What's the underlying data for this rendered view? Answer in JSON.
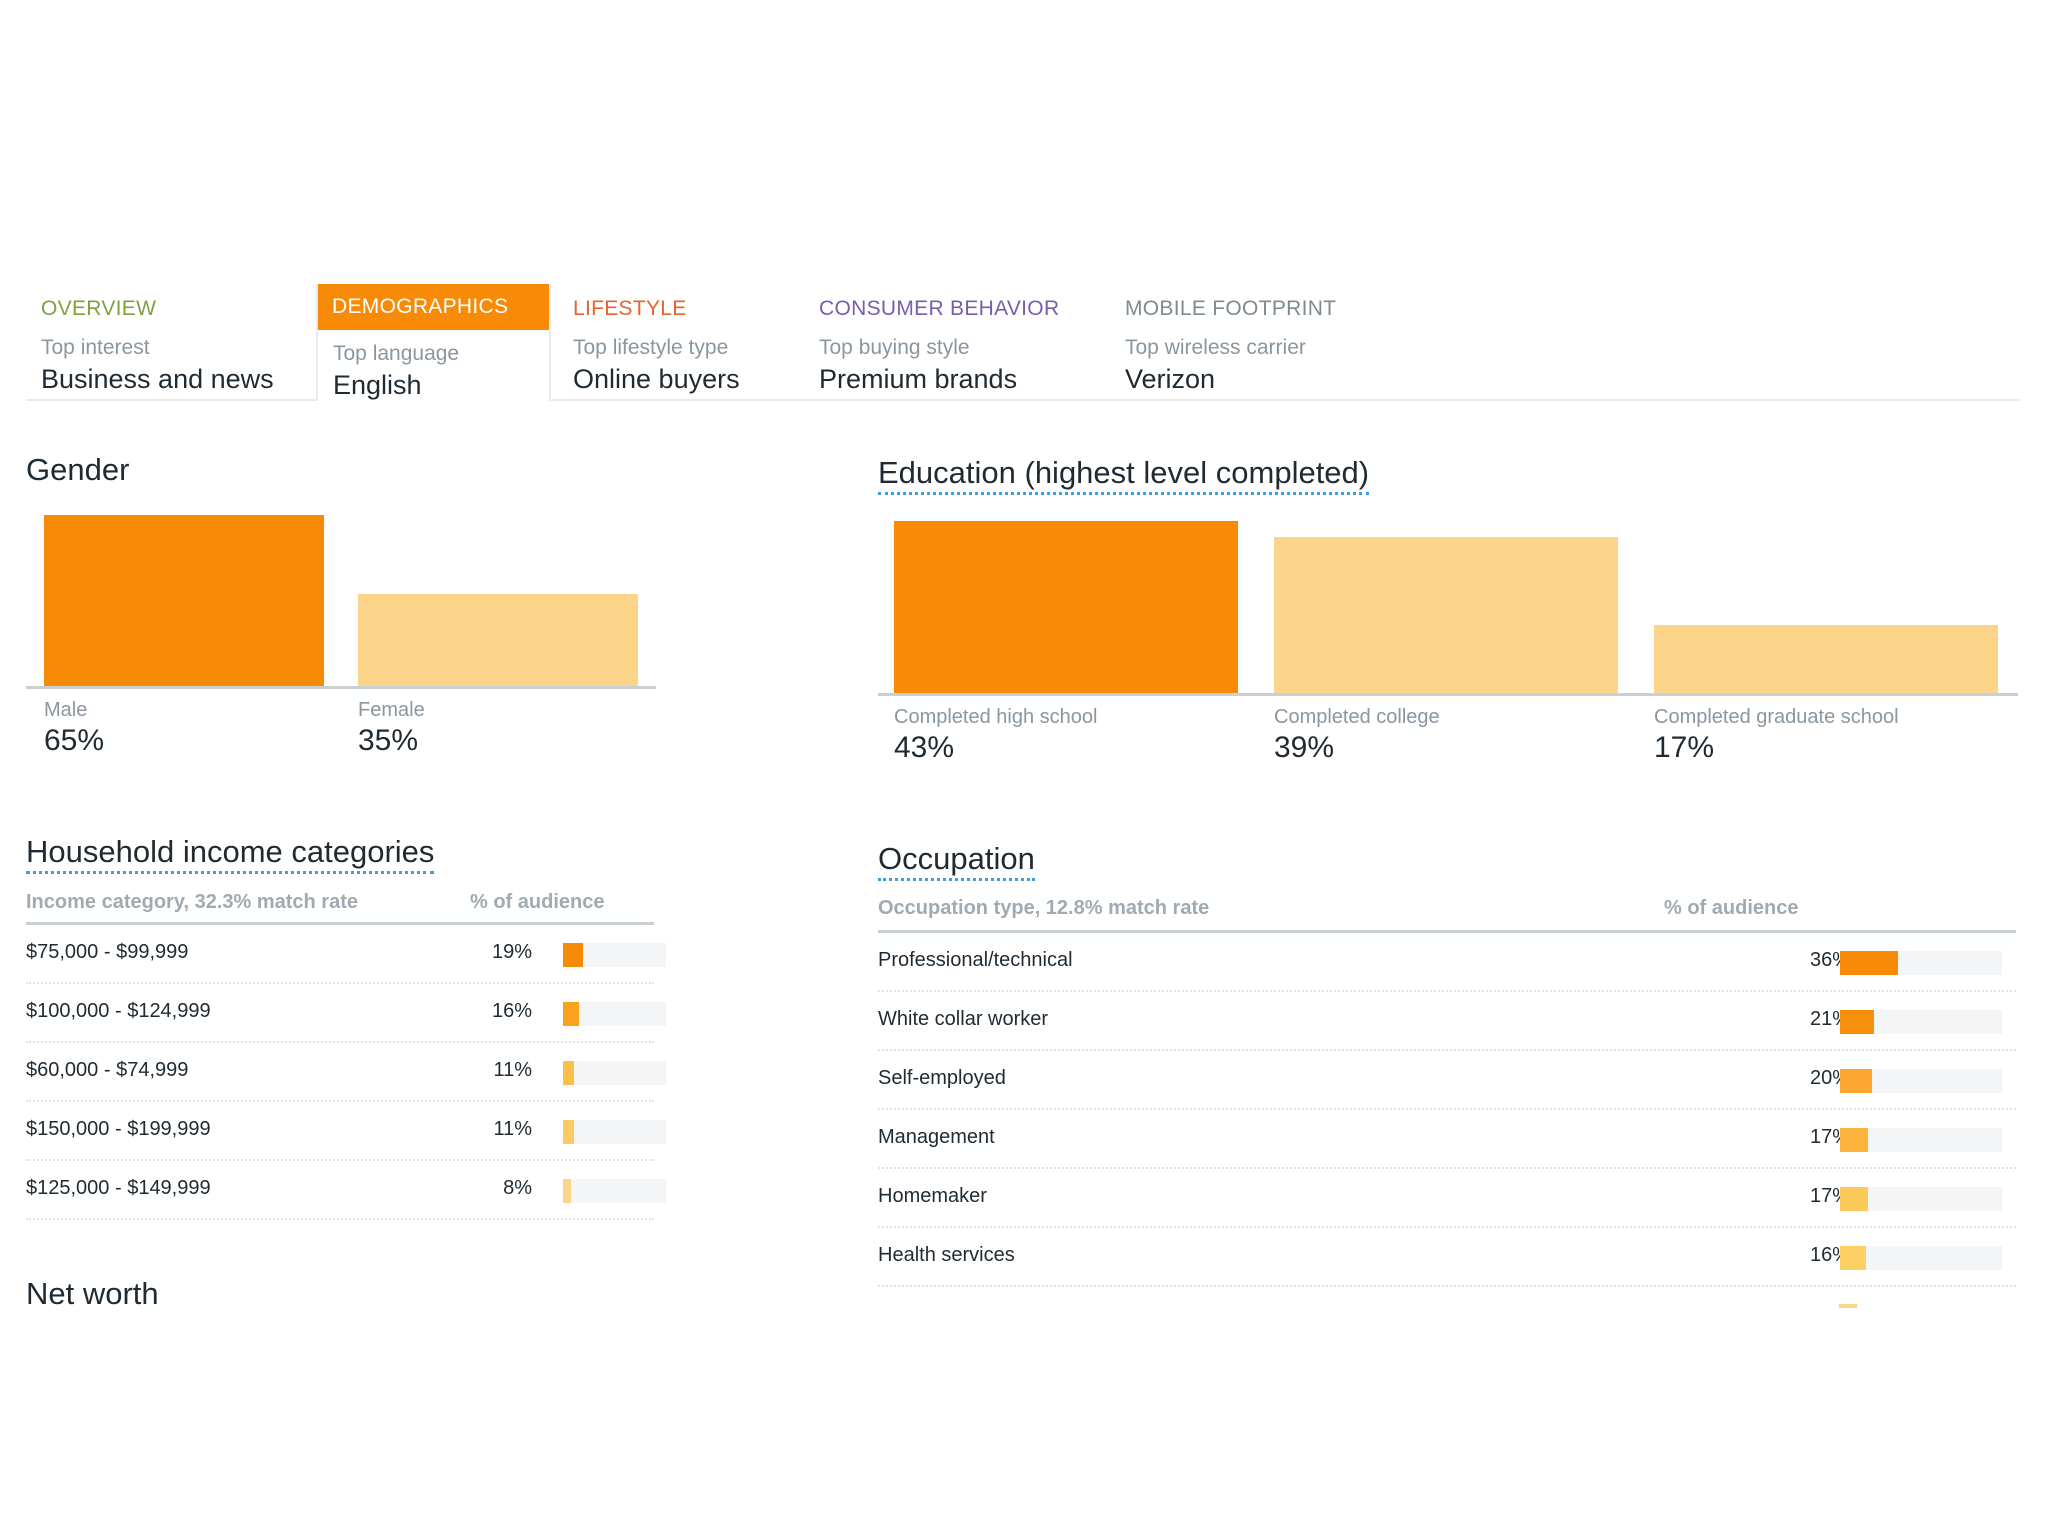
{
  "colors": {
    "accent": "#f78b07",
    "light_bar": "#fdd58a",
    "tab_overview": "#7ba23f",
    "tab_demographics": "#ffffff",
    "tab_lifestyle": "#e8622c",
    "tab_consumer": "#7a5cad",
    "tab_mobile": "#7d8a94"
  },
  "tabs": [
    {
      "label": "OVERVIEW",
      "sub": "Top interest",
      "value": "Business and news"
    },
    {
      "label": "DEMOGRAPHICS",
      "sub": "Top language",
      "value": "English"
    },
    {
      "label": "LIFESTYLE",
      "sub": "Top lifestyle type",
      "value": "Online buyers"
    },
    {
      "label": "CONSUMER BEHAVIOR",
      "sub": "Top buying style",
      "value": "Premium brands"
    },
    {
      "label": "MOBILE FOOTPRINT",
      "sub": "Top wireless carrier",
      "value": "Verizon"
    }
  ],
  "gender": {
    "title": "Gender",
    "chart_data": {
      "type": "bar",
      "categories": [
        "Male",
        "Female"
      ],
      "values": [
        65,
        35
      ],
      "value_labels": [
        "65%",
        "35%"
      ],
      "colors": [
        "#f78b07",
        "#fdd58a"
      ]
    }
  },
  "education": {
    "title": "Education (highest level completed)",
    "chart_data": {
      "type": "bar",
      "categories": [
        "Completed high school",
        "Completed college",
        "Completed graduate school"
      ],
      "values": [
        43,
        39,
        17
      ],
      "value_labels": [
        "43%",
        "39%",
        "17%"
      ],
      "colors": [
        "#f78b07",
        "#fdd58a",
        "#fdd58a"
      ]
    }
  },
  "income": {
    "title": "Household income categories",
    "col1": "Income category, 32.3% match rate",
    "col2": "% of audience",
    "rows": [
      {
        "label": "$75,000 - $99,999",
        "pct": "19%",
        "value": 19,
        "color": "#f78b07"
      },
      {
        "label": "$100,000 - $124,999",
        "pct": "16%",
        "value": 16,
        "color": "#f9a21f"
      },
      {
        "label": "$60,000 - $74,999",
        "pct": "11%",
        "value": 11,
        "color": "#fbbf4a"
      },
      {
        "label": "$150,000 - $199,999",
        "pct": "11%",
        "value": 11,
        "color": "#fcc963"
      },
      {
        "label": "$125,000 - $149,999",
        "pct": "8%",
        "value": 8,
        "color": "#fdd58a"
      }
    ]
  },
  "occupation": {
    "title": "Occupation",
    "col1": "Occupation type, 12.8% match rate",
    "col2": "% of audience",
    "rows": [
      {
        "label": "Professional/technical",
        "pct": "36%",
        "value": 36,
        "color": "#f78b07"
      },
      {
        "label": "White collar worker",
        "pct": "21%",
        "value": 21,
        "color": "#f88f0c"
      },
      {
        "label": "Self-employed",
        "pct": "20%",
        "value": 20,
        "color": "#fba630"
      },
      {
        "label": "Management",
        "pct": "17%",
        "value": 17,
        "color": "#fbb33c"
      },
      {
        "label": "Homemaker",
        "pct": "17%",
        "value": 17,
        "color": "#fcca5a"
      },
      {
        "label": "Health services",
        "pct": "16%",
        "value": 16,
        "color": "#fcd064"
      }
    ]
  },
  "net_worth": {
    "title": "Net worth"
  }
}
